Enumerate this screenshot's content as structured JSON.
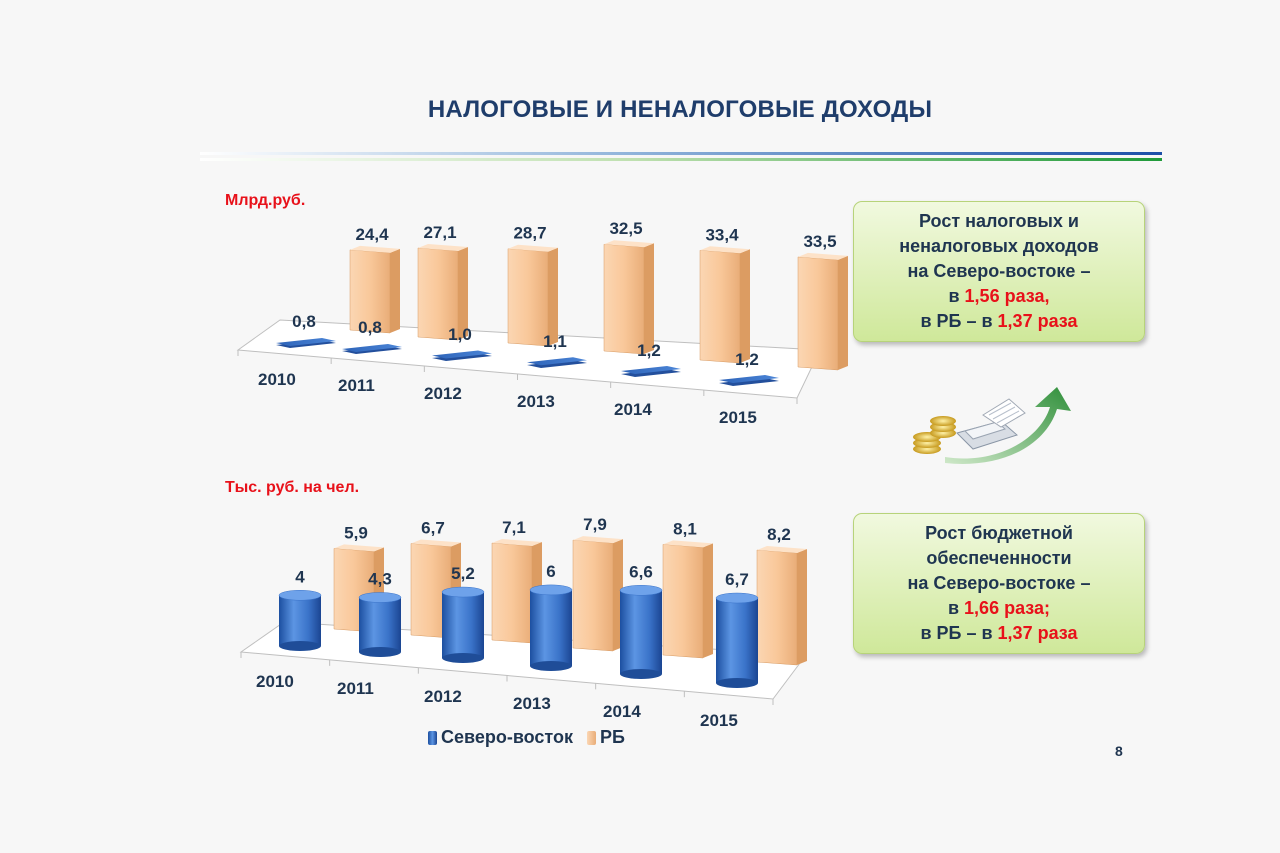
{
  "title": "НАЛОГОВЫЕ И НЕНАЛОГОВЫЕ ДОХОДЫ",
  "page_number": "8",
  "colors": {
    "north_east": "#3a73c9",
    "rb": "#f8c597",
    "accent": "#e8111a",
    "title": "#1f3d6b"
  },
  "callouts": [
    {
      "lines": [
        {
          "parts": [
            {
              "text": "Рост налоговых и"
            }
          ]
        },
        {
          "parts": [
            {
              "text": "неналоговых доходов"
            }
          ]
        },
        {
          "parts": [
            {
              "text": "на Северо-востоке –"
            }
          ]
        },
        {
          "parts": [
            {
              "text": "в "
            },
            {
              "text": "1,56 раза,",
              "hl": true
            }
          ]
        },
        {
          "parts": [
            {
              "text": "в РБ – в "
            },
            {
              "text": "1,37 раза",
              "hl": true
            }
          ]
        }
      ]
    },
    {
      "lines": [
        {
          "parts": [
            {
              "text": "Рост  бюджетной"
            }
          ]
        },
        {
          "parts": [
            {
              "text": "обеспеченности"
            }
          ]
        },
        {
          "parts": [
            {
              "text": "на Северо-востоке –"
            }
          ]
        },
        {
          "parts": [
            {
              "text": "в "
            },
            {
              "text": "1,66 раза;",
              "hl": true
            }
          ]
        },
        {
          "parts": [
            {
              "text": "в РБ – в "
            },
            {
              "text": "1,37 раза",
              "hl": true
            }
          ]
        }
      ]
    }
  ],
  "legend": [
    "Северо-восток",
    "РБ"
  ],
  "chart_data": [
    {
      "type": "bar",
      "unit_label": "Млрд.руб.",
      "categories": [
        "2010",
        "2011",
        "2012",
        "2013",
        "2014",
        "2015"
      ],
      "series": [
        {
          "name": "Северо-восток",
          "values": [
            0.8,
            0.8,
            1.0,
            1.1,
            1.2,
            1.2
          ],
          "labels": [
            "0,8",
            "0,8",
            "1,0",
            "1,1",
            "1,2",
            "1,2"
          ]
        },
        {
          "name": "РБ",
          "values": [
            24.4,
            27.1,
            28.7,
            32.5,
            33.4,
            33.5
          ],
          "labels": [
            "24,4",
            "27,1",
            "28,7",
            "32,5",
            "33,4",
            "33,5"
          ]
        }
      ]
    },
    {
      "type": "bar",
      "unit_label": "Тыс. руб. на чел.",
      "categories": [
        "2010",
        "2011",
        "2012",
        "2013",
        "2014",
        "2015"
      ],
      "series": [
        {
          "name": "Северо-восток",
          "values": [
            4,
            4.3,
            5.2,
            6,
            6.6,
            6.7
          ],
          "labels": [
            "4",
            "4,3",
            "5,2",
            "6",
            "6,6",
            "6,7"
          ]
        },
        {
          "name": "РБ",
          "values": [
            5.9,
            6.7,
            7.1,
            7.9,
            8.1,
            8.2
          ],
          "labels": [
            "5,9",
            "6,7",
            "7,1",
            "7,9",
            "8,1",
            "8,2"
          ]
        }
      ]
    }
  ]
}
